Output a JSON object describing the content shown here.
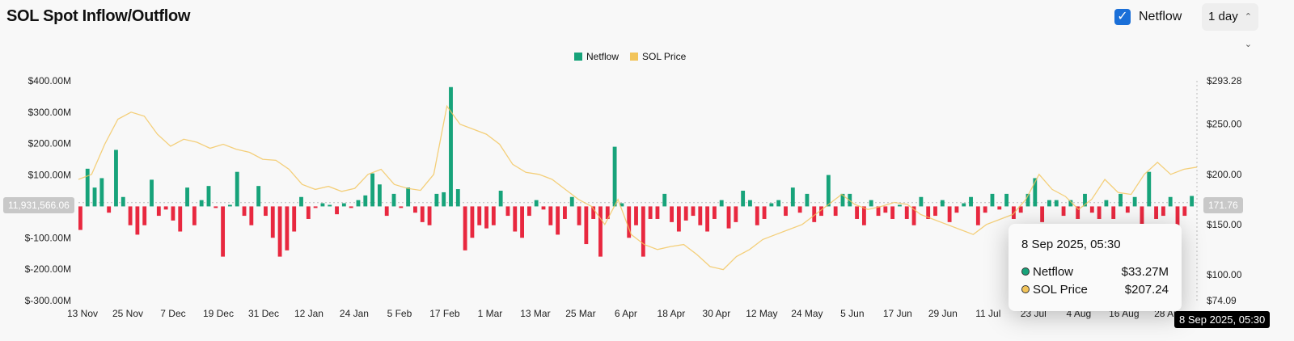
{
  "header": {
    "title": "SOL Spot Inflow/Outflow",
    "checkbox_label": "Netflow",
    "checkbox_checked": true,
    "interval": "1 day"
  },
  "colors": {
    "positive": "#17a37a",
    "negative": "#e8283f",
    "price": "#f2c45a"
  },
  "crosshair": {
    "left_value": "11,931,566.06",
    "right_value": "171.76",
    "x_value": "8 Sep 2025, 05:30"
  },
  "tooltip": {
    "date": "8 Sep 2025, 05:30",
    "rows": [
      {
        "label": "Netflow",
        "value": "$33.27M",
        "color": "#17a37a"
      },
      {
        "label": "SOL Price",
        "value": "$207.24",
        "color": "#f2c45a"
      }
    ]
  },
  "chart_data": {
    "type": "bar+line",
    "legend": [
      "Netflow",
      "SOL Price"
    ],
    "legend_position": "top",
    "x_tick_labels": [
      "13 Nov",
      "25 Nov",
      "7 Dec",
      "19 Dec",
      "31 Dec",
      "12 Jan",
      "24 Jan",
      "5 Feb",
      "17 Feb",
      "1 Mar",
      "13 Mar",
      "25 Mar",
      "6 Apr",
      "18 Apr",
      "30 Apr",
      "12 May",
      "24 May",
      "5 Jun",
      "17 Jun",
      "29 Jun",
      "11 Jul",
      "23 Jul",
      "4 Aug",
      "16 Aug",
      "28 Aug"
    ],
    "y_left": {
      "ticks": [
        "$400.00M",
        "$300.00M",
        "$200.00M",
        "$100.00M",
        "$-100.00M",
        "$-200.00M",
        "$-300.00M"
      ],
      "range": [
        -300,
        400
      ],
      "unit": "M"
    },
    "y_right": {
      "ticks": [
        "$293.28",
        "$250.00",
        "$200.00",
        "$150.00",
        "$100.00",
        "$74.09"
      ],
      "range": [
        74.09,
        293.28
      ]
    },
    "series": [
      {
        "name": "Netflow",
        "type": "bar",
        "values": [
          -75,
          120,
          60,
          90,
          -20,
          180,
          30,
          -60,
          -90,
          -60,
          85,
          -30,
          -10,
          -45,
          -80,
          60,
          -60,
          20,
          65,
          -5,
          -160,
          5,
          110,
          -30,
          -60,
          65,
          -30,
          -100,
          -160,
          -140,
          -80,
          30,
          -40,
          -5,
          10,
          5,
          -25,
          10,
          -5,
          20,
          35,
          105,
          70,
          -30,
          40,
          -5,
          60,
          -20,
          -50,
          -60,
          40,
          45,
          380,
          55,
          -140,
          -100,
          -60,
          -70,
          -60,
          50,
          -30,
          -80,
          -100,
          -30,
          20,
          -10,
          -60,
          -90,
          -40,
          30,
          -60,
          -120,
          -40,
          -160,
          -40,
          190,
          10,
          -100,
          -60,
          -160,
          -40,
          -40,
          40,
          -50,
          -80,
          -45,
          -30,
          -60,
          -80,
          -40,
          20,
          -70,
          -50,
          50,
          20,
          -60,
          -40,
          10,
          20,
          -30,
          60,
          -20,
          40,
          -50,
          -30,
          100,
          -30,
          40,
          40,
          -40,
          -60,
          20,
          -30,
          -20,
          -40,
          5,
          -40,
          -60,
          30,
          -40,
          -30,
          20,
          -50,
          -20,
          10,
          30,
          -60,
          -20,
          40,
          -10,
          40,
          -40,
          -20,
          40,
          90,
          -50,
          20,
          20,
          -30,
          20,
          -40,
          40,
          -20,
          -40,
          20,
          -40,
          40,
          -20,
          30,
          -60,
          110,
          -40,
          -30,
          30,
          -60,
          -30,
          33.27
        ]
      },
      {
        "name": "SOL Price",
        "type": "line",
        "values": [
          195,
          200,
          230,
          255,
          262,
          258,
          240,
          228,
          235,
          232,
          226,
          230,
          225,
          222,
          215,
          214,
          205,
          190,
          185,
          188,
          183,
          186,
          200,
          205,
          190,
          186,
          184,
          200,
          268,
          250,
          245,
          240,
          230,
          210,
          202,
          200,
          195,
          185,
          175,
          168,
          150,
          175,
          140,
          130,
          125,
          128,
          130,
          120,
          108,
          105,
          118,
          125,
          135,
          140,
          145,
          150,
          160,
          170,
          180,
          170,
          165,
          168,
          172,
          170,
          160,
          155,
          150,
          145,
          140,
          150,
          155,
          160,
          175,
          200,
          185,
          178,
          165,
          175,
          195,
          182,
          180,
          200,
          212,
          200,
          205,
          207.24
        ]
      }
    ]
  }
}
